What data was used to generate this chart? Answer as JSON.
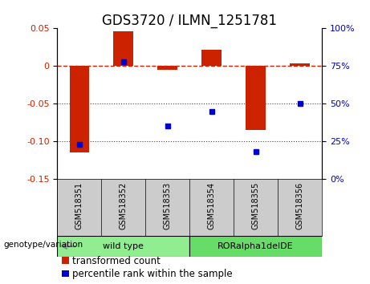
{
  "title": "GDS3720 / ILMN_1251781",
  "samples": [
    "GSM518351",
    "GSM518352",
    "GSM518353",
    "GSM518354",
    "GSM518355",
    "GSM518356"
  ],
  "red_values": [
    -0.115,
    0.046,
    -0.005,
    0.022,
    -0.085,
    0.003
  ],
  "blue_values": [
    23,
    78,
    35,
    45,
    18,
    50
  ],
  "ylim_left": [
    -0.15,
    0.05
  ],
  "ylim_right": [
    0,
    100
  ],
  "yticks_left": [
    0.05,
    0.0,
    -0.05,
    -0.1,
    -0.15
  ],
  "yticks_right": [
    100,
    75,
    50,
    25,
    0
  ],
  "groups": [
    {
      "label": "wild type",
      "indices": [
        0,
        1,
        2
      ],
      "color": "#90ee90"
    },
    {
      "label": "RORalpha1delDE",
      "indices": [
        3,
        4,
        5
      ],
      "color": "#66dd66"
    }
  ],
  "bar_color": "#cc2200",
  "dot_color": "#0000cc",
  "hline_color": "#cc2200",
  "dotted_line_color": "#444444",
  "background_color": "#ffffff",
  "sample_label_bg": "#cccccc",
  "legend_red_label": "transformed count",
  "legend_blue_label": "percentile rank within the sample",
  "genotype_label": "genotype/variation",
  "title_fontsize": 12,
  "tick_fontsize": 8,
  "legend_fontsize": 8.5,
  "bar_width": 0.45
}
